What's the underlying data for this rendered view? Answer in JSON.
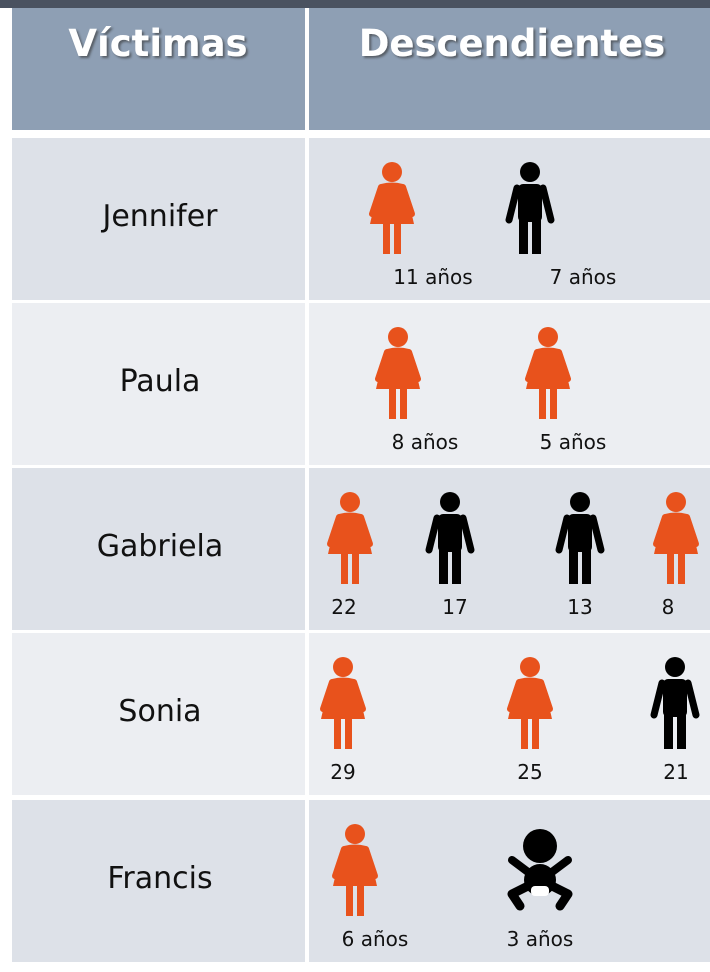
{
  "header": {
    "columns": [
      "Víctimas",
      "Descendientes"
    ]
  },
  "table": {
    "rows": [
      {
        "name": "Jennifer",
        "children": [
          {
            "icon": "girl",
            "label": "11 años"
          },
          {
            "icon": "boy",
            "label": "7 años"
          }
        ]
      },
      {
        "name": "Paula",
        "children": [
          {
            "icon": "girl",
            "label": "8 años"
          },
          {
            "icon": "girl",
            "label": "5 años"
          }
        ]
      },
      {
        "name": "Gabriela",
        "children": [
          {
            "icon": "girl",
            "label": "22"
          },
          {
            "icon": "boy",
            "label": "17"
          },
          {
            "icon": "boy",
            "label": "13"
          },
          {
            "icon": "girl",
            "label": "8"
          }
        ]
      },
      {
        "name": "Sonia",
        "children": [
          {
            "icon": "girl",
            "label": "29"
          },
          {
            "icon": "girl",
            "label": "25"
          },
          {
            "icon": "boy",
            "label": "21"
          }
        ]
      },
      {
        "name": "Francis",
        "children": [
          {
            "icon": "girl",
            "label": "6 años"
          },
          {
            "icon": "baby",
            "label": "3 años"
          }
        ]
      }
    ]
  }
}
